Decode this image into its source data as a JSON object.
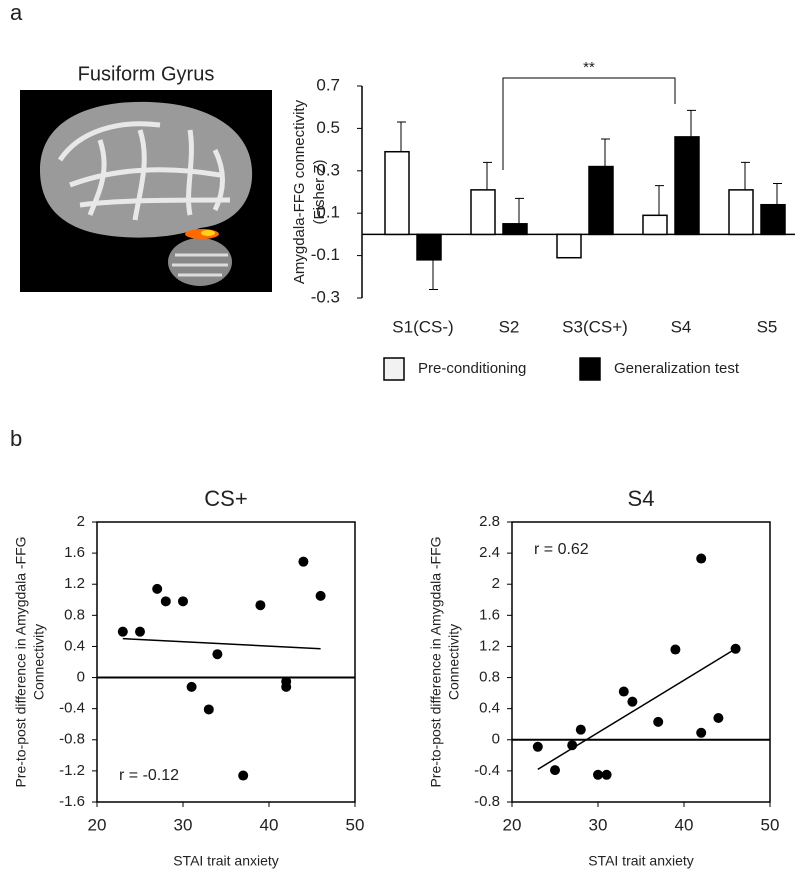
{
  "panel_labels": [
    "a",
    "b"
  ],
  "image_title": "Fusiform Gyrus",
  "chart_data": [
    {
      "type": "bar",
      "ylabel": [
        "Amygdala-FFG connectivity",
        "(Fisher Z)"
      ],
      "categories": [
        "S1(CS-)",
        "S2",
        "S3(CS+)",
        "S4",
        "S5"
      ],
      "series": [
        {
          "name": "Pre-conditioning",
          "color": "#ffffff",
          "values": [
            0.39,
            0.21,
            -0.11,
            0.09,
            0.21
          ],
          "errors": [
            0.14,
            0.13,
            null,
            0.14,
            0.13
          ]
        },
        {
          "name": "Generalization test",
          "color": "#000000",
          "values": [
            -0.12,
            0.05,
            0.32,
            0.46,
            0.14
          ],
          "errors": [
            0.14,
            0.12,
            0.13,
            0.125,
            0.1
          ]
        }
      ],
      "ylim": [
        -0.3,
        0.7
      ],
      "yticks": [
        -0.3,
        -0.1,
        0.1,
        0.3,
        0.5,
        0.7
      ],
      "annotation": "**"
    },
    {
      "type": "scatter",
      "title": "CS+",
      "xlabel": "STAI trait anxiety",
      "ylabel": [
        "Pre-to-post difference in Amygdala -FFG",
        "Connectivity"
      ],
      "x": [
        23,
        25,
        27,
        28,
        30,
        31,
        33,
        34,
        37,
        39,
        42,
        42,
        44,
        46
      ],
      "values": [
        0.59,
        0.59,
        1.14,
        0.98,
        0.98,
        -0.12,
        -0.41,
        0.3,
        -1.26,
        0.93,
        -0.05,
        -0.12,
        1.49,
        1.05
      ],
      "fit": {
        "x": [
          23,
          46
        ],
        "values": [
          0.5,
          0.37
        ]
      },
      "annotation": "r = -0.12",
      "color": "#000000",
      "xlim": [
        20,
        50
      ],
      "xticks": [
        20,
        30,
        40,
        50
      ],
      "ylim": [
        -1.6,
        2
      ],
      "yticks": [
        -1.6,
        -1.2,
        -0.8,
        -0.4,
        0,
        0.4,
        0.8,
        1.2,
        1.6,
        2
      ]
    },
    {
      "type": "scatter",
      "title": "S4",
      "xlabel": "STAI trait anxiety",
      "ylabel": [
        "Pre-to-post difference in Amygdala -FFG",
        "Connectivity"
      ],
      "x": [
        23,
        25,
        27,
        28,
        30,
        31,
        33,
        34,
        37,
        39,
        42,
        42,
        44,
        46
      ],
      "values": [
        -0.09,
        -0.39,
        -0.07,
        0.13,
        -0.45,
        -0.45,
        0.62,
        0.49,
        0.23,
        1.16,
        0.09,
        2.33,
        0.28,
        1.17
      ],
      "fit": {
        "x": [
          23,
          46
        ],
        "values": [
          -0.38,
          1.17
        ]
      },
      "annotation": "r = 0.62",
      "color": "#000000",
      "xlim": [
        20,
        50
      ],
      "xticks": [
        20,
        30,
        40,
        50
      ],
      "ylim": [
        -0.8,
        2.8
      ],
      "yticks": [
        -0.8,
        -0.4,
        0,
        0.4,
        0.8,
        1.2,
        1.6,
        2,
        2.4,
        2.8
      ]
    }
  ]
}
